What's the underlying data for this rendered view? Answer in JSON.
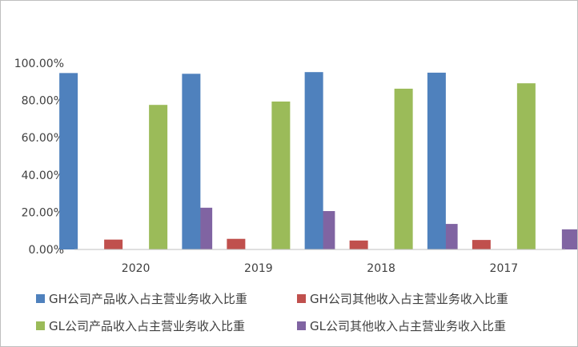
{
  "chart_data": {
    "type": "bar",
    "categories": [
      "2020",
      "2019",
      "2018",
      "2017"
    ],
    "series": [
      {
        "name": "GH公司产品收入占主营业务收入比重",
        "color": "#4f81bd",
        "values": [
          94.7,
          94.3,
          95.2,
          94.9
        ]
      },
      {
        "name": "GH公司其他收入占主营业务收入比重",
        "color": "#c0504d",
        "values": [
          5.3,
          5.7,
          4.8,
          5.1
        ]
      },
      {
        "name": "GL公司产品收入占主营业务收入比重",
        "color": "#9bbb59",
        "values": [
          77.6,
          79.4,
          86.3,
          89.2
        ]
      },
      {
        "name": "GL公司其他收入占主营业务收入比重",
        "color": "#8064a2",
        "values": [
          22.4,
          20.6,
          13.7,
          10.8
        ]
      }
    ],
    "yticks": [
      "0.00%",
      "20.00%",
      "40.00%",
      "60.00%",
      "80.00%",
      "100.00%"
    ],
    "ylim": [
      0,
      100
    ],
    "grid": false,
    "legend_position": "bottom"
  }
}
